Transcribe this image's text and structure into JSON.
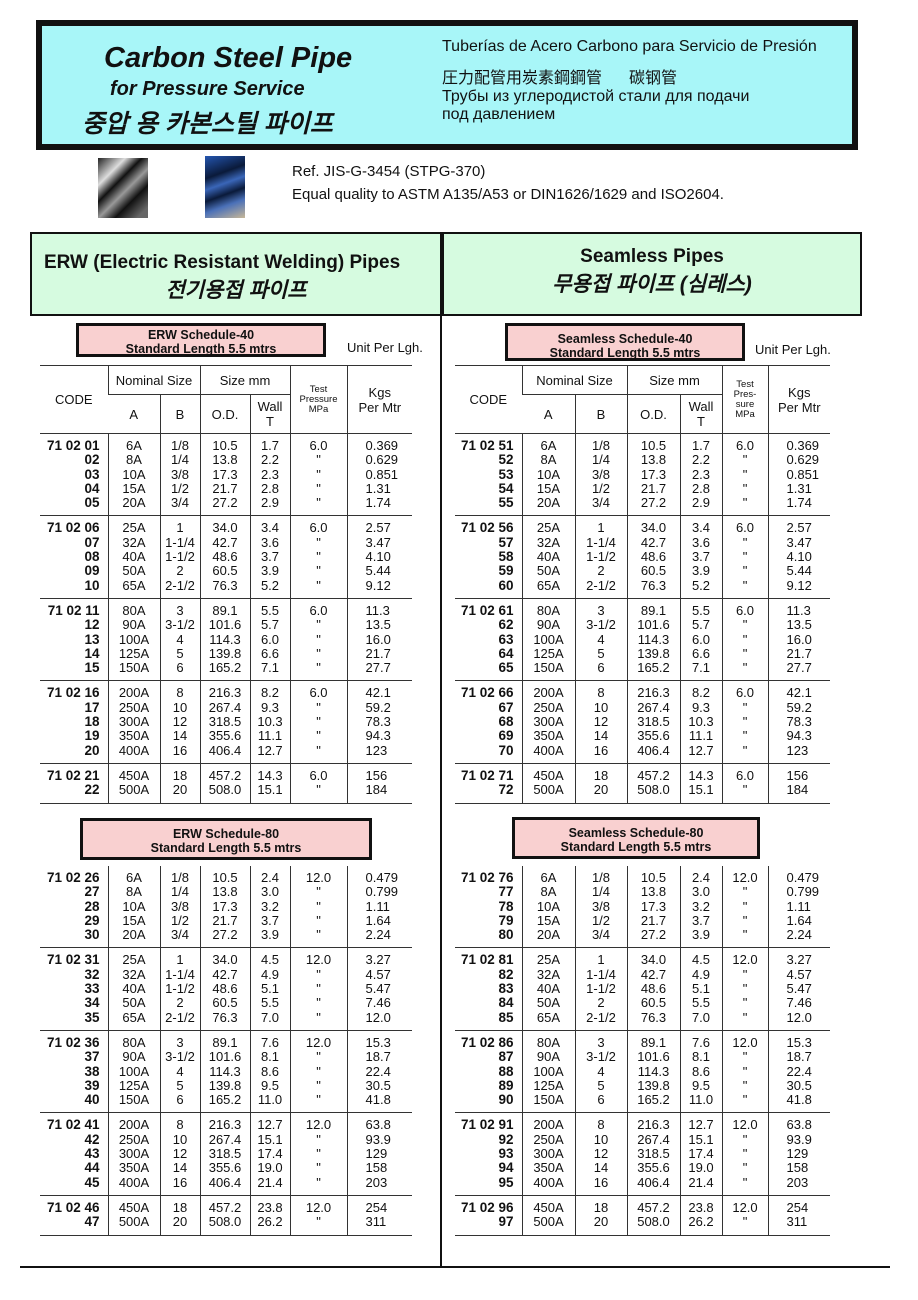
{
  "header": {
    "title_en": "Carbon Steel Pipe",
    "subtitle_en": "for Pressure Service",
    "title_ko": "중압 용 카본스틸 파이프",
    "title_es": "Tuberías de Acero Carbono para Servicio de Presión",
    "title_ja": "圧力配管用炭素鋼鋼管",
    "title_zh": "碳钢管",
    "title_ru_1": "Трубы из углеродистой стали для подачи",
    "title_ru_2": "под давлением",
    "bg_color": "#a8f6f8"
  },
  "reference": {
    "line1": "Ref. JIS-G-3454 (STPG-370)",
    "line2": "Equal quality to ASTM A135/A53 or DIN1626/1629 and ISO2604."
  },
  "sections": {
    "erw": {
      "title_en": "ERW (Electric Resistant Welding) Pipes",
      "title_ko": "전기용접 파이프"
    },
    "seamless": {
      "title_en": "Seamless Pipes",
      "title_ko": "무용접 파이프 (심레스)"
    }
  },
  "unit_label": "Unit Per Lgh.",
  "columns": {
    "code": "CODE",
    "nominal": "Nominal Size",
    "a": "A",
    "b": "B",
    "size_mm": "Size mm",
    "od": "O.D.",
    "wall": "Wall\nT",
    "pressure_erw": "Test\nPressure\nMPa",
    "pressure_seamless": "Test\nPres-\nsure\nMPa",
    "kgs": "Kgs\nPer Mtr"
  },
  "tables": [
    {
      "id": "erw-40",
      "label1": "ERW Schedule-40",
      "label2": "Standard Length 5.5 mtrs",
      "pressure": "6.0",
      "codes": [
        "71 02 01",
        "02",
        "03",
        "04",
        "05",
        "71 02 06",
        "07",
        "08",
        "09",
        "10",
        "71 02 11",
        "12",
        "13",
        "14",
        "15",
        "71 02 16",
        "17",
        "18",
        "19",
        "20",
        "71 02 21",
        "22"
      ],
      "wall": [
        "1.7",
        "2.2",
        "2.3",
        "2.8",
        "2.9",
        "3.4",
        "3.6",
        "3.7",
        "3.9",
        "5.2",
        "5.5",
        "5.7",
        "6.0",
        "6.6",
        "7.1",
        "8.2",
        "9.3",
        "10.3",
        "11.1",
        "12.7",
        "14.3",
        "15.1"
      ],
      "kgs": [
        "0.369",
        "0.629",
        "0.851",
        "1.31",
        "1.74",
        "2.57",
        "3.47",
        "4.10",
        "5.44",
        "9.12",
        "11.3",
        "13.5",
        "16.0",
        "21.7",
        "27.7",
        "42.1",
        "59.2",
        "78.3",
        "94.3",
        "123",
        "156",
        "184"
      ]
    },
    {
      "id": "erw-80",
      "label1": "ERW Schedule-80",
      "label2": "Standard Length 5.5 mtrs",
      "pressure": "12.0",
      "codes": [
        "71 02 26",
        "27",
        "28",
        "29",
        "30",
        "71 02 31",
        "32",
        "33",
        "34",
        "35",
        "71 02 36",
        "37",
        "38",
        "39",
        "40",
        "71 02 41",
        "42",
        "43",
        "44",
        "45",
        "71 02 46",
        "47"
      ],
      "wall": [
        "2.4",
        "3.0",
        "3.2",
        "3.7",
        "3.9",
        "4.5",
        "4.9",
        "5.1",
        "5.5",
        "7.0",
        "7.6",
        "8.1",
        "8.6",
        "9.5",
        "11.0",
        "12.7",
        "15.1",
        "17.4",
        "19.0",
        "21.4",
        "23.8",
        "26.2"
      ],
      "kgs": [
        "0.479",
        "0.799",
        "1.11",
        "1.64",
        "2.24",
        "3.27",
        "4.57",
        "5.47",
        "7.46",
        "12.0",
        "15.3",
        "18.7",
        "22.4",
        "30.5",
        "41.8",
        "63.8",
        "93.9",
        "129",
        "158",
        "203",
        "254",
        "311"
      ]
    },
    {
      "id": "seamless-40",
      "label1": "Seamless Schedule-40",
      "label2": "Standard Length 5.5 mtrs",
      "pressure": "6.0",
      "codes": [
        "71 02 51",
        "52",
        "53",
        "54",
        "55",
        "71 02 56",
        "57",
        "58",
        "59",
        "60",
        "71 02 61",
        "62",
        "63",
        "64",
        "65",
        "71 02 66",
        "67",
        "68",
        "69",
        "70",
        "71 02 71",
        "72"
      ],
      "wall": [
        "1.7",
        "2.2",
        "2.3",
        "2.8",
        "2.9",
        "3.4",
        "3.6",
        "3.7",
        "3.9",
        "5.2",
        "5.5",
        "5.7",
        "6.0",
        "6.6",
        "7.1",
        "8.2",
        "9.3",
        "10.3",
        "11.1",
        "12.7",
        "14.3",
        "15.1"
      ],
      "kgs": [
        "0.369",
        "0.629",
        "0.851",
        "1.31",
        "1.74",
        "2.57",
        "3.47",
        "4.10",
        "5.44",
        "9.12",
        "11.3",
        "13.5",
        "16.0",
        "21.7",
        "27.7",
        "42.1",
        "59.2",
        "78.3",
        "94.3",
        "123",
        "156",
        "184"
      ]
    },
    {
      "id": "seamless-80",
      "label1": "Seamless Schedule-80",
      "label2": "Standard Length 5.5 mtrs",
      "pressure": "12.0",
      "codes": [
        "71 02 76",
        "77",
        "78",
        "79",
        "80",
        "71 02 81",
        "82",
        "83",
        "84",
        "85",
        "71 02 86",
        "87",
        "88",
        "89",
        "90",
        "71 02 91",
        "92",
        "93",
        "94",
        "95",
        "71 02 96",
        "97"
      ],
      "wall": [
        "2.4",
        "3.0",
        "3.2",
        "3.7",
        "3.9",
        "4.5",
        "4.9",
        "5.1",
        "5.5",
        "7.0",
        "7.6",
        "8.1",
        "8.6",
        "9.5",
        "11.0",
        "12.7",
        "15.1",
        "17.4",
        "19.0",
        "21.4",
        "23.8",
        "26.2"
      ],
      "kgs": [
        "0.479",
        "0.799",
        "1.11",
        "1.64",
        "2.24",
        "3.27",
        "4.57",
        "5.47",
        "7.46",
        "12.0",
        "15.3",
        "18.7",
        "22.4",
        "30.5",
        "41.8",
        "63.8",
        "93.9",
        "129",
        "158",
        "203",
        "254",
        "311"
      ]
    }
  ],
  "sizes": {
    "a": [
      "6A",
      "8A",
      "10A",
      "15A",
      "20A",
      "25A",
      "32A",
      "40A",
      "50A",
      "65A",
      "80A",
      "90A",
      "100A",
      "125A",
      "150A",
      "200A",
      "250A",
      "300A",
      "350A",
      "400A",
      "450A",
      "500A"
    ],
    "b": [
      "1/8",
      "1/4",
      "3/8",
      "1/2",
      "3/4",
      "1",
      "1-1/4",
      "1-1/2",
      "2",
      "2-1/2",
      "3",
      "3-1/2",
      "4",
      "5",
      "6",
      "8",
      "10",
      "12",
      "14",
      "16",
      "18",
      "20"
    ],
    "od": [
      "10.5",
      "13.8",
      "17.3",
      "21.7",
      "27.2",
      "34.0",
      "42.7",
      "48.6",
      "60.5",
      "76.3",
      "89.1",
      "101.6",
      "114.3",
      "139.8",
      "165.2",
      "216.3",
      "267.4",
      "318.5",
      "355.6",
      "406.4",
      "457.2",
      "508.0"
    ]
  },
  "ditto_mark": "\""
}
